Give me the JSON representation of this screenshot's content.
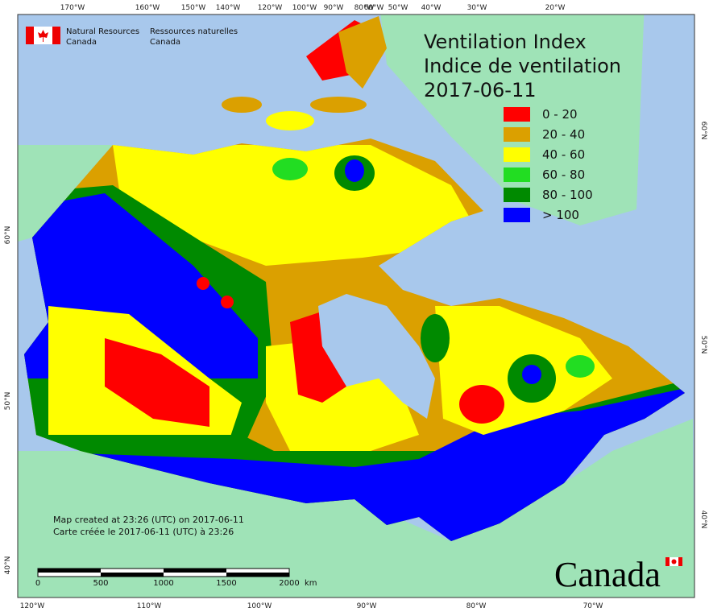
{
  "header": {
    "org_en_1": "Natural Resources",
    "org_en_2": "Canada",
    "org_fr_1": "Ressources naturelles",
    "org_fr_2": "Canada",
    "title_en": "Ventilation Index",
    "title_fr": "Indice de ventilation",
    "date": "2017-06-11"
  },
  "legend": [
    {
      "label": "0 - 20",
      "color": "#ff0000"
    },
    {
      "label": "20 - 40",
      "color": "#dba000"
    },
    {
      "label": "40 - 60",
      "color": "#ffff00"
    },
    {
      "label": "60 - 80",
      "color": "#22dd22"
    },
    {
      "label": "80 - 100",
      "color": "#008a00"
    },
    {
      "label": "> 100",
      "color": "#0000ff"
    }
  ],
  "graticule": {
    "top": [
      "170°W",
      "160°W",
      "150°W",
      "140°W",
      "120°W",
      "100°W",
      "90°W",
      "80°W",
      "60°W",
      "50°W",
      "40°W",
      "30°W",
      "20°W"
    ],
    "bottom": [
      "120°W",
      "110°W",
      "100°W",
      "90°W",
      "80°W",
      "70°W"
    ],
    "left": [
      "60°N",
      "50°N",
      "40°N"
    ],
    "right": [
      "60°N",
      "50°N",
      "40°N"
    ]
  },
  "scale_bar": {
    "labels": [
      "0",
      "500",
      "1000",
      "1500",
      "2000"
    ],
    "unit": "km"
  },
  "footer": {
    "line_en": "Map created at 23:26 (UTC) on 2017-06-11",
    "line_fr": "Carte créée le 2017-06-11 (UTC) à 23:26"
  },
  "wordmark": "Canada"
}
